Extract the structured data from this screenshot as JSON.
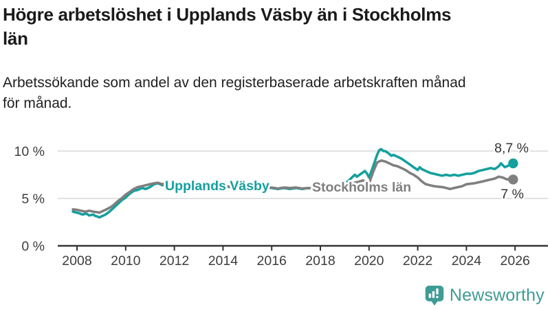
{
  "header": {
    "title": "Högre arbetslöshet i Upplands Väsby än i Stockholms län",
    "title_lines": [
      "Högre arbetslöshet i Upplands Väsby än i Stockholms",
      "län"
    ],
    "subtitle": "Arbetssökande som andel av den registerbaserade arbetskraften månad för månad.",
    "subtitle_lines": [
      "Arbetssökande som andel av den registerbaserade arbetskraften månad",
      "för månad."
    ]
  },
  "footer": {
    "brand": "Newsworthy",
    "logo_icon": "bar-chart-speech-bubble-icon"
  },
  "colors": {
    "accent_teal": "#14a09e",
    "series_gray": "#7f7f7f",
    "grid": "#d9d9d9",
    "axis": "#333333",
    "annotation_text": "#333333",
    "brand_teal": "#3e9c94",
    "title_text": "#1a1a1a"
  },
  "chart_data": {
    "type": "line",
    "title": "Högre arbetslöshet i Upplands Väsby än i Stockholms län",
    "subtitle": "Arbetssökande som andel av den registerbaserade arbetskraften månad för månad.",
    "xlabel": "",
    "ylabel": "",
    "ylim": [
      0,
      10.8
    ],
    "xlim": [
      2007.7,
      2026.5
    ],
    "grid": "horizontal",
    "legend_position": "inline-labels",
    "yticks": [
      {
        "value": 0,
        "label": "0 %"
      },
      {
        "value": 5,
        "label": "5 %"
      },
      {
        "value": 10,
        "label": "10 %"
      }
    ],
    "xticks": [
      {
        "value": 2008,
        "label": "2008"
      },
      {
        "value": 2010,
        "label": "2010"
      },
      {
        "value": 2012,
        "label": "2012"
      },
      {
        "value": 2014,
        "label": "2014"
      },
      {
        "value": 2016,
        "label": "2016"
      },
      {
        "value": 2018,
        "label": "2018"
      },
      {
        "value": 2020,
        "label": "2020"
      },
      {
        "value": 2022,
        "label": "2022"
      },
      {
        "value": 2024,
        "label": "2024"
      },
      {
        "value": 2026,
        "label": "2026"
      }
    ],
    "series": [
      {
        "name": "Upplands Väsby",
        "color": "#14a09e",
        "end_label": "8,7 %",
        "end_value": 8.7,
        "points": [
          [
            2007.83,
            3.6
          ],
          [
            2008.0,
            3.5
          ],
          [
            2008.08,
            3.45
          ],
          [
            2008.17,
            3.35
          ],
          [
            2008.25,
            3.3
          ],
          [
            2008.33,
            3.4
          ],
          [
            2008.42,
            3.35
          ],
          [
            2008.5,
            3.2
          ],
          [
            2008.58,
            3.25
          ],
          [
            2008.67,
            3.3
          ],
          [
            2008.75,
            3.15
          ],
          [
            2008.83,
            3.1
          ],
          [
            2008.92,
            3.0
          ],
          [
            2009.0,
            3.1
          ],
          [
            2009.17,
            3.3
          ],
          [
            2009.33,
            3.6
          ],
          [
            2009.5,
            4.0
          ],
          [
            2009.67,
            4.4
          ],
          [
            2009.83,
            4.8
          ],
          [
            2010.0,
            5.1
          ],
          [
            2010.17,
            5.5
          ],
          [
            2010.33,
            5.8
          ],
          [
            2010.5,
            5.9
          ],
          [
            2010.67,
            6.1
          ],
          [
            2010.83,
            6.0
          ],
          [
            2011.0,
            6.2
          ],
          [
            2011.17,
            6.5
          ],
          [
            2011.33,
            6.6
          ],
          [
            2011.5,
            6.4
          ],
          [
            2011.67,
            6.5
          ],
          [
            2011.83,
            6.3
          ],
          [
            2012.0,
            6.4
          ],
          [
            2012.25,
            6.2
          ],
          [
            2012.5,
            6.0
          ],
          [
            2012.75,
            6.3
          ],
          [
            2013.0,
            6.2
          ],
          [
            2013.33,
            6.3
          ],
          [
            2013.67,
            6.4
          ],
          [
            2014.0,
            6.3
          ],
          [
            2014.33,
            6.2
          ],
          [
            2014.67,
            6.3
          ],
          [
            2015.0,
            6.2
          ],
          [
            2015.33,
            6.1
          ],
          [
            2015.67,
            6.2
          ],
          [
            2016.0,
            6.1
          ],
          [
            2016.25,
            6.0
          ],
          [
            2016.5,
            6.1
          ],
          [
            2016.75,
            6.0
          ],
          [
            2017.0,
            6.1
          ],
          [
            2017.25,
            6.0
          ],
          [
            2017.5,
            6.1
          ],
          [
            2017.75,
            6.0
          ],
          [
            2018.0,
            6.1
          ],
          [
            2018.33,
            6.2
          ],
          [
            2018.67,
            6.3
          ],
          [
            2019.0,
            6.5
          ],
          [
            2019.17,
            6.9
          ],
          [
            2019.33,
            7.3
          ],
          [
            2019.42,
            7.5
          ],
          [
            2019.5,
            7.3
          ],
          [
            2019.67,
            7.6
          ],
          [
            2019.83,
            7.9
          ],
          [
            2019.92,
            7.6
          ],
          [
            2020.0,
            7.2
          ],
          [
            2020.17,
            8.4
          ],
          [
            2020.33,
            9.6
          ],
          [
            2020.42,
            10.1
          ],
          [
            2020.5,
            10.2
          ],
          [
            2020.58,
            10.0
          ],
          [
            2020.67,
            10.0
          ],
          [
            2020.83,
            9.7
          ],
          [
            2020.92,
            9.5
          ],
          [
            2021.0,
            9.6
          ],
          [
            2021.17,
            9.4
          ],
          [
            2021.33,
            9.2
          ],
          [
            2021.5,
            8.9
          ],
          [
            2021.67,
            8.6
          ],
          [
            2021.83,
            8.3
          ],
          [
            2022.0,
            8.0
          ],
          [
            2022.08,
            8.3
          ],
          [
            2022.17,
            8.1
          ],
          [
            2022.33,
            7.9
          ],
          [
            2022.5,
            7.7
          ],
          [
            2022.67,
            7.6
          ],
          [
            2022.83,
            7.5
          ],
          [
            2023.0,
            7.4
          ],
          [
            2023.17,
            7.5
          ],
          [
            2023.33,
            7.4
          ],
          [
            2023.5,
            7.5
          ],
          [
            2023.67,
            7.4
          ],
          [
            2023.83,
            7.5
          ],
          [
            2024.0,
            7.6
          ],
          [
            2024.17,
            7.6
          ],
          [
            2024.33,
            7.7
          ],
          [
            2024.5,
            7.9
          ],
          [
            2024.67,
            8.0
          ],
          [
            2024.83,
            8.1
          ],
          [
            2025.0,
            8.2
          ],
          [
            2025.17,
            8.1
          ],
          [
            2025.33,
            8.4
          ],
          [
            2025.42,
            8.7
          ],
          [
            2025.58,
            8.3
          ],
          [
            2025.75,
            8.5
          ],
          [
            2025.92,
            8.7
          ]
        ]
      },
      {
        "name": "Stockholms län",
        "color": "#7f7f7f",
        "end_label": "7 %",
        "end_value": 7.0,
        "points": [
          [
            2007.83,
            3.85
          ],
          [
            2008.0,
            3.8
          ],
          [
            2008.17,
            3.7
          ],
          [
            2008.33,
            3.6
          ],
          [
            2008.5,
            3.7
          ],
          [
            2008.67,
            3.6
          ],
          [
            2008.83,
            3.55
          ],
          [
            2008.92,
            3.5
          ],
          [
            2009.0,
            3.6
          ],
          [
            2009.17,
            3.8
          ],
          [
            2009.33,
            4.0
          ],
          [
            2009.5,
            4.3
          ],
          [
            2009.67,
            4.7
          ],
          [
            2009.83,
            5.0
          ],
          [
            2010.0,
            5.4
          ],
          [
            2010.17,
            5.7
          ],
          [
            2010.33,
            6.0
          ],
          [
            2010.5,
            6.2
          ],
          [
            2010.67,
            6.3
          ],
          [
            2010.83,
            6.4
          ],
          [
            2011.0,
            6.5
          ],
          [
            2011.17,
            6.6
          ],
          [
            2011.33,
            6.65
          ],
          [
            2011.5,
            6.5
          ],
          [
            2011.67,
            6.6
          ],
          [
            2011.83,
            6.55
          ],
          [
            2012.0,
            6.5
          ],
          [
            2012.25,
            6.45
          ],
          [
            2012.5,
            6.4
          ],
          [
            2012.75,
            6.45
          ],
          [
            2013.0,
            6.4
          ],
          [
            2013.33,
            6.35
          ],
          [
            2013.67,
            6.4
          ],
          [
            2014.0,
            6.3
          ],
          [
            2014.33,
            6.25
          ],
          [
            2014.67,
            6.3
          ],
          [
            2015.0,
            6.2
          ],
          [
            2015.33,
            6.15
          ],
          [
            2015.67,
            6.1
          ],
          [
            2016.0,
            6.15
          ],
          [
            2016.25,
            6.05
          ],
          [
            2016.5,
            6.15
          ],
          [
            2016.75,
            6.1
          ],
          [
            2017.0,
            6.15
          ],
          [
            2017.25,
            6.05
          ],
          [
            2017.5,
            6.1
          ],
          [
            2017.75,
            6.0
          ],
          [
            2018.0,
            6.1
          ],
          [
            2018.33,
            6.2
          ],
          [
            2018.67,
            6.3
          ],
          [
            2019.0,
            6.4
          ],
          [
            2019.25,
            6.6
          ],
          [
            2019.5,
            6.7
          ],
          [
            2019.75,
            6.9
          ],
          [
            2020.0,
            6.6
          ],
          [
            2020.17,
            7.8
          ],
          [
            2020.33,
            8.8
          ],
          [
            2020.5,
            9.0
          ],
          [
            2020.67,
            8.9
          ],
          [
            2020.83,
            8.7
          ],
          [
            2021.0,
            8.5
          ],
          [
            2021.17,
            8.4
          ],
          [
            2021.33,
            8.2
          ],
          [
            2021.5,
            8.0
          ],
          [
            2021.67,
            7.7
          ],
          [
            2021.83,
            7.5
          ],
          [
            2022.0,
            7.2
          ],
          [
            2022.17,
            6.8
          ],
          [
            2022.33,
            6.5
          ],
          [
            2022.5,
            6.4
          ],
          [
            2022.67,
            6.3
          ],
          [
            2022.83,
            6.25
          ],
          [
            2023.0,
            6.2
          ],
          [
            2023.17,
            6.1
          ],
          [
            2023.33,
            6.0
          ],
          [
            2023.5,
            6.1
          ],
          [
            2023.67,
            6.2
          ],
          [
            2023.83,
            6.3
          ],
          [
            2024.0,
            6.5
          ],
          [
            2024.17,
            6.55
          ],
          [
            2024.33,
            6.6
          ],
          [
            2024.5,
            6.7
          ],
          [
            2024.67,
            6.8
          ],
          [
            2024.83,
            6.9
          ],
          [
            2025.0,
            7.0
          ],
          [
            2025.17,
            7.1
          ],
          [
            2025.33,
            7.3
          ],
          [
            2025.5,
            7.2
          ],
          [
            2025.67,
            7.0
          ],
          [
            2025.83,
            7.1
          ],
          [
            2025.92,
            7.0
          ]
        ]
      }
    ]
  }
}
